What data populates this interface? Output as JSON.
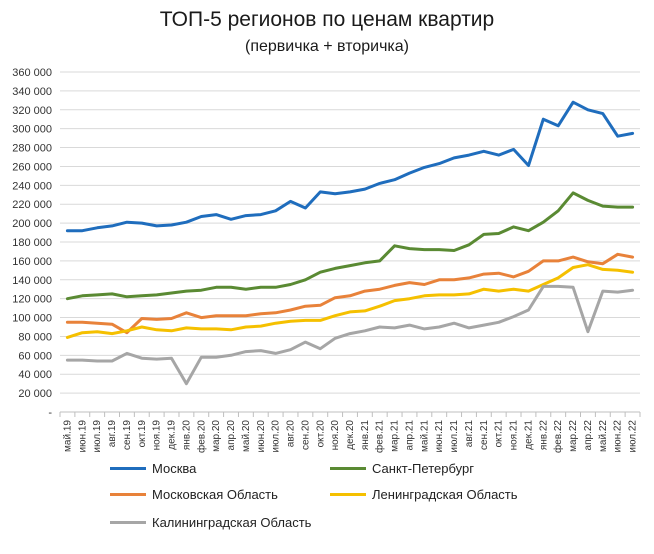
{
  "chart_data": {
    "type": "line",
    "title": "ТОП-5 регионов по ценам квартир",
    "subtitle": "(первичка + вторичка)",
    "xlabel": "",
    "ylabel": "",
    "ylim": [
      0,
      360000
    ],
    "yticks": [
      "-",
      "20 000",
      "40 000",
      "60 000",
      "80 000",
      "100 000",
      "120 000",
      "140 000",
      "160 000",
      "180 000",
      "200 000",
      "220 000",
      "240 000",
      "260 000",
      "280 000",
      "300 000",
      "320 000",
      "340 000",
      "360 000"
    ],
    "grid": "horizontal",
    "legend_position": "bottom",
    "categories": [
      "май.19",
      "июн.19",
      "июл.19",
      "авг.19",
      "сен.19",
      "окт.19",
      "ноя.19",
      "дек.19",
      "янв.20",
      "фев.20",
      "мар.20",
      "апр.20",
      "май.20",
      "июн.20",
      "июл.20",
      "авг.20",
      "сен.20",
      "окт.20",
      "ноя.20",
      "дек.20",
      "янв.21",
      "фев.21",
      "мар.21",
      "апр.21",
      "май.21",
      "июн.21",
      "июл.21",
      "авг.21",
      "сен.21",
      "окт.21",
      "ноя.21",
      "дек.21",
      "янв.22",
      "фев.22",
      "мар.22",
      "апр.22",
      "май.22",
      "июн.22",
      "июл.22"
    ],
    "series": [
      {
        "name": "Москва",
        "color": "#1f6dbd",
        "values": [
          192000,
          192000,
          195000,
          197000,
          201000,
          200000,
          197000,
          198000,
          201000,
          207000,
          209000,
          204000,
          208000,
          209000,
          213000,
          223000,
          216000,
          233000,
          231000,
          233000,
          236000,
          242000,
          246000,
          253000,
          259000,
          263000,
          269000,
          272000,
          276000,
          272000,
          278000,
          261000,
          310000,
          303000,
          328000,
          320000,
          316000,
          292000,
          295000
        ]
      },
      {
        "name": "Санкт-Петербург",
        "color": "#5a8a33",
        "values": [
          120000,
          123000,
          124000,
          125000,
          122000,
          123000,
          124000,
          126000,
          128000,
          129000,
          132000,
          132000,
          130000,
          132000,
          132000,
          135000,
          140000,
          148000,
          152000,
          155000,
          158000,
          160000,
          176000,
          173000,
          172000,
          172000,
          171000,
          177000,
          188000,
          189000,
          196000,
          192000,
          201000,
          213000,
          232000,
          224000,
          218000,
          217000,
          217000
        ]
      },
      {
        "name": "Московская Область",
        "color": "#e8823a",
        "values": [
          95000,
          95000,
          94000,
          93000,
          84000,
          99000,
          98000,
          99000,
          105000,
          100000,
          102000,
          102000,
          102000,
          104000,
          105000,
          108000,
          112000,
          113000,
          121000,
          123000,
          128000,
          130000,
          134000,
          137000,
          135000,
          140000,
          140000,
          142000,
          146000,
          147000,
          143000,
          149000,
          160000,
          160000,
          164000,
          159000,
          157000,
          167000,
          164000
        ]
      },
      {
        "name": "Ленинградская Область",
        "color": "#f5c000",
        "values": [
          79000,
          84000,
          85000,
          83000,
          86000,
          90000,
          87000,
          86000,
          89000,
          88000,
          88000,
          87000,
          90000,
          91000,
          94000,
          96000,
          97000,
          97000,
          102000,
          106000,
          107000,
          112000,
          118000,
          120000,
          123000,
          124000,
          124000,
          125000,
          130000,
          128000,
          130000,
          128000,
          135000,
          142000,
          153000,
          156000,
          151000,
          150000,
          148000
        ]
      },
      {
        "name": "Калининградская Область",
        "color": "#a6a6a6",
        "values": [
          55000,
          55000,
          54000,
          54000,
          62000,
          57000,
          56000,
          57000,
          30000,
          58000,
          58000,
          60000,
          64000,
          65000,
          62000,
          66000,
          74000,
          67000,
          78000,
          83000,
          86000,
          90000,
          89000,
          92000,
          88000,
          90000,
          94000,
          89000,
          92000,
          95000,
          101000,
          108000,
          133000,
          133000,
          132000,
          85000,
          128000,
          127000,
          129000
        ]
      }
    ]
  }
}
